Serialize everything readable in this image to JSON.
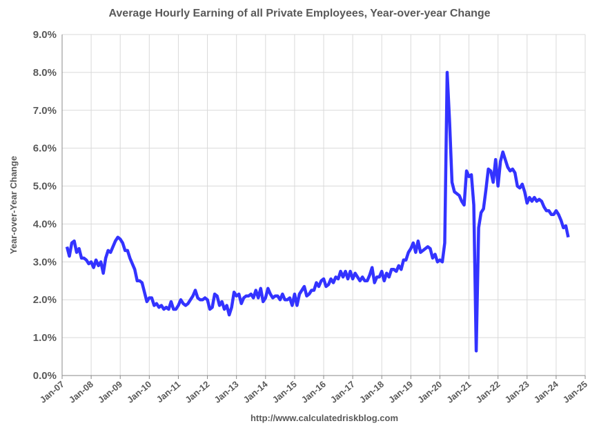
{
  "chart_data": {
    "type": "line",
    "title": "Average Hourly Earning of all Private Employees, Year-over-year Change",
    "y_label": "Year-over-Year Change",
    "source": "http://www.calculatedriskblog.com",
    "grid": true,
    "xlim": [
      "2007-01",
      "2025-01"
    ],
    "xticks": [
      {
        "value": "2007-01",
        "label": "Jan-07"
      },
      {
        "value": "2008-01",
        "label": "Jan-08"
      },
      {
        "value": "2009-01",
        "label": "Jan-09"
      },
      {
        "value": "2010-01",
        "label": "Jan-10"
      },
      {
        "value": "2011-01",
        "label": "Jan-11"
      },
      {
        "value": "2012-01",
        "label": "Jan-12"
      },
      {
        "value": "2013-01",
        "label": "Jan-13"
      },
      {
        "value": "2014-01",
        "label": "Jan-14"
      },
      {
        "value": "2015-01",
        "label": "Jan-15"
      },
      {
        "value": "2016-01",
        "label": "Jan-16"
      },
      {
        "value": "2017-01",
        "label": "Jan-17"
      },
      {
        "value": "2018-01",
        "label": "Jan-18"
      },
      {
        "value": "2019-01",
        "label": "Jan-19"
      },
      {
        "value": "2020-01",
        "label": "Jan-20"
      },
      {
        "value": "2021-01",
        "label": "Jan-21"
      },
      {
        "value": "2022-01",
        "label": "Jan-22"
      },
      {
        "value": "2023-01",
        "label": "Jan-23"
      },
      {
        "value": "2024-01",
        "label": "Jan-24"
      },
      {
        "value": "2025-01",
        "label": "Jan-25"
      }
    ],
    "ylim": [
      0,
      9
    ],
    "yticks": [
      {
        "value": 0,
        "label": "0.0%"
      },
      {
        "value": 1,
        "label": "1.0%"
      },
      {
        "value": 2,
        "label": "2.0%"
      },
      {
        "value": 3,
        "label": "3.0%"
      },
      {
        "value": 4,
        "label": "4.0%"
      },
      {
        "value": 5,
        "label": "5.0%"
      },
      {
        "value": 6,
        "label": "6.0%"
      },
      {
        "value": 7,
        "label": "7.0%"
      },
      {
        "value": 8,
        "label": "8.0%"
      },
      {
        "value": 9,
        "label": "9.0%"
      }
    ],
    "x": [
      "2007-03",
      "2007-04",
      "2007-05",
      "2007-06",
      "2007-07",
      "2007-08",
      "2007-09",
      "2007-10",
      "2007-11",
      "2007-12",
      "2008-01",
      "2008-02",
      "2008-03",
      "2008-04",
      "2008-05",
      "2008-06",
      "2008-07",
      "2008-08",
      "2008-09",
      "2008-10",
      "2008-11",
      "2008-12",
      "2009-01",
      "2009-02",
      "2009-03",
      "2009-04",
      "2009-05",
      "2009-06",
      "2009-07",
      "2009-08",
      "2009-09",
      "2009-10",
      "2009-11",
      "2009-12",
      "2010-01",
      "2010-02",
      "2010-03",
      "2010-04",
      "2010-05",
      "2010-06",
      "2010-07",
      "2010-08",
      "2010-09",
      "2010-10",
      "2010-11",
      "2010-12",
      "2011-01",
      "2011-02",
      "2011-03",
      "2011-04",
      "2011-05",
      "2011-06",
      "2011-07",
      "2011-08",
      "2011-09",
      "2011-10",
      "2011-11",
      "2011-12",
      "2012-01",
      "2012-02",
      "2012-03",
      "2012-04",
      "2012-05",
      "2012-06",
      "2012-07",
      "2012-08",
      "2012-09",
      "2012-10",
      "2012-11",
      "2012-12",
      "2013-01",
      "2013-02",
      "2013-03",
      "2013-04",
      "2013-05",
      "2013-06",
      "2013-07",
      "2013-08",
      "2013-09",
      "2013-10",
      "2013-11",
      "2013-12",
      "2014-01",
      "2014-02",
      "2014-03",
      "2014-04",
      "2014-05",
      "2014-06",
      "2014-07",
      "2014-08",
      "2014-09",
      "2014-10",
      "2014-11",
      "2014-12",
      "2015-01",
      "2015-02",
      "2015-03",
      "2015-04",
      "2015-05",
      "2015-06",
      "2015-07",
      "2015-08",
      "2015-09",
      "2015-10",
      "2015-11",
      "2015-12",
      "2016-01",
      "2016-02",
      "2016-03",
      "2016-04",
      "2016-05",
      "2016-06",
      "2016-07",
      "2016-08",
      "2016-09",
      "2016-10",
      "2016-11",
      "2016-12",
      "2017-01",
      "2017-02",
      "2017-03",
      "2017-04",
      "2017-05",
      "2017-06",
      "2017-07",
      "2017-08",
      "2017-09",
      "2017-10",
      "2017-11",
      "2017-12",
      "2018-01",
      "2018-02",
      "2018-03",
      "2018-04",
      "2018-05",
      "2018-06",
      "2018-07",
      "2018-08",
      "2018-09",
      "2018-10",
      "2018-11",
      "2018-12",
      "2019-01",
      "2019-02",
      "2019-03",
      "2019-04",
      "2019-05",
      "2019-06",
      "2019-07",
      "2019-08",
      "2019-09",
      "2019-10",
      "2019-11",
      "2019-12",
      "2020-01",
      "2020-02",
      "2020-03",
      "2020-04",
      "2020-05",
      "2020-06",
      "2020-07",
      "2020-08",
      "2020-09",
      "2020-10",
      "2020-11",
      "2020-12",
      "2021-01",
      "2021-02",
      "2021-03",
      "2021-04",
      "2021-05",
      "2021-06",
      "2021-07",
      "2021-08",
      "2021-09",
      "2021-10",
      "2021-11",
      "2021-12",
      "2022-01",
      "2022-02",
      "2022-03",
      "2022-04",
      "2022-05",
      "2022-06",
      "2022-07",
      "2022-08",
      "2022-09",
      "2022-10",
      "2022-11",
      "2022-12",
      "2023-01",
      "2023-02",
      "2023-03",
      "2023-04",
      "2023-05",
      "2023-06",
      "2023-07",
      "2023-08",
      "2023-09",
      "2023-10",
      "2023-11",
      "2023-12",
      "2024-01",
      "2024-02",
      "2024-03",
      "2024-04",
      "2024-05",
      "2024-06"
    ],
    "series": [
      {
        "color": "#3333ff",
        "values": [
          3.4,
          3.15,
          3.5,
          3.55,
          3.25,
          3.35,
          3.1,
          3.1,
          3.05,
          2.95,
          3.0,
          2.85,
          3.05,
          2.9,
          3.0,
          2.7,
          3.1,
          3.3,
          3.25,
          3.4,
          3.55,
          3.65,
          3.6,
          3.5,
          3.3,
          3.3,
          3.1,
          2.95,
          2.8,
          2.5,
          2.5,
          2.45,
          2.2,
          1.95,
          2.05,
          2.05,
          1.85,
          1.9,
          1.8,
          1.85,
          1.75,
          1.8,
          1.75,
          1.95,
          1.75,
          1.75,
          1.85,
          2.0,
          1.9,
          1.85,
          1.9,
          2.0,
          2.1,
          2.25,
          2.05,
          2.0,
          2.0,
          2.05,
          2.0,
          1.75,
          1.8,
          2.15,
          2.1,
          1.85,
          1.95,
          1.75,
          1.85,
          1.6,
          1.8,
          2.2,
          2.1,
          2.15,
          1.9,
          2.05,
          2.1,
          2.1,
          2.15,
          2.05,
          2.25,
          2.05,
          2.3,
          1.95,
          2.05,
          2.3,
          2.15,
          2.05,
          2.1,
          2.1,
          2.0,
          2.15,
          2.0,
          2.0,
          2.05,
          1.85,
          2.15,
          1.85,
          2.15,
          2.25,
          2.35,
          2.1,
          2.15,
          2.25,
          2.25,
          2.45,
          2.35,
          2.5,
          2.55,
          2.35,
          2.4,
          2.55,
          2.45,
          2.6,
          2.55,
          2.75,
          2.6,
          2.75,
          2.55,
          2.75,
          2.55,
          2.7,
          2.6,
          2.5,
          2.6,
          2.5,
          2.5,
          2.65,
          2.85,
          2.45,
          2.6,
          2.6,
          2.75,
          2.5,
          2.7,
          2.6,
          2.8,
          2.8,
          2.75,
          2.9,
          2.8,
          3.05,
          3.05,
          3.25,
          3.35,
          3.5,
          3.25,
          3.55,
          3.25,
          3.3,
          3.35,
          3.4,
          3.35,
          3.1,
          3.2,
          3.0,
          3.05,
          3.0,
          3.5,
          8.0,
          6.7,
          5.1,
          4.85,
          4.8,
          4.75,
          4.6,
          4.5,
          5.4,
          5.25,
          5.3,
          4.5,
          0.65,
          3.9,
          4.3,
          4.4,
          4.9,
          5.45,
          5.4,
          5.1,
          5.7,
          5.0,
          5.65,
          5.9,
          5.7,
          5.5,
          5.4,
          5.45,
          5.35,
          5.0,
          4.95,
          5.05,
          4.85,
          4.55,
          4.7,
          4.6,
          4.7,
          4.6,
          4.65,
          4.6,
          4.45,
          4.35,
          4.35,
          4.25,
          4.25,
          4.35,
          4.25,
          4.1,
          3.9,
          3.95,
          3.65
        ]
      }
    ]
  }
}
